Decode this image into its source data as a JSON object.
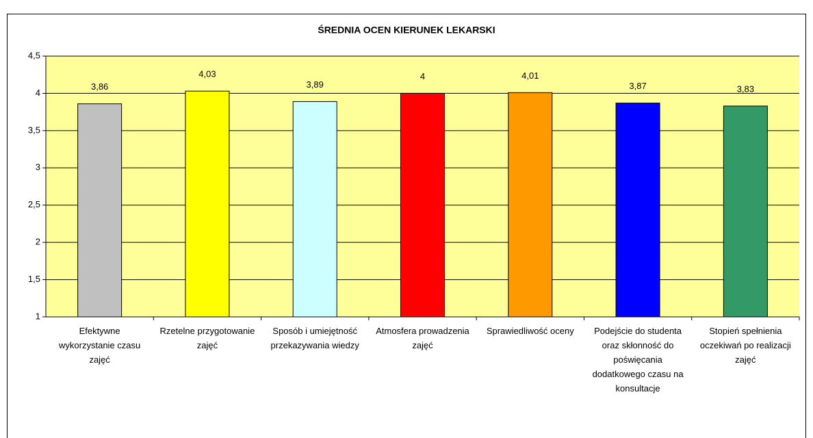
{
  "chart_data": {
    "type": "bar",
    "title": "ŚREDNIA OCEN KIERUNEK LEKARSKI",
    "categories": [
      "Efektywne wykorzystanie czasu zajęć",
      "Rzetelne przygotowanie zajęć",
      "Sposób i umiejętność przekazywania wiedzy",
      "Atmosfera prowadzenia zajęć",
      "Sprawiedliwość oceny",
      "Podejście do studenta oraz skłonność do poświęcania dodatkowego czasu na konsultacje",
      "Stopień spełnienia oczekiwań po realizacji zajęć"
    ],
    "values": [
      3.86,
      4.03,
      3.89,
      4,
      4.01,
      3.87,
      3.83
    ],
    "value_labels": [
      "3,86",
      "4,03",
      "3,89",
      "4",
      "4,01",
      "3,87",
      "3,83"
    ],
    "colors": [
      "#c0c0c0",
      "#ffff00",
      "#ccffff",
      "#ff0000",
      "#ff9900",
      "#0000ff",
      "#339966"
    ],
    "ylim": [
      1,
      4.5
    ],
    "yticks": [
      1,
      {
        "value": 1.5,
        "label": "1,5"
      },
      2,
      {
        "value": 2.5,
        "label": "2,5"
      },
      3,
      {
        "value": 3.5,
        "label": "3,5"
      },
      4,
      {
        "value": 4.5,
        "label": "4,5"
      }
    ],
    "grid": true,
    "background": "#ffff99"
  }
}
